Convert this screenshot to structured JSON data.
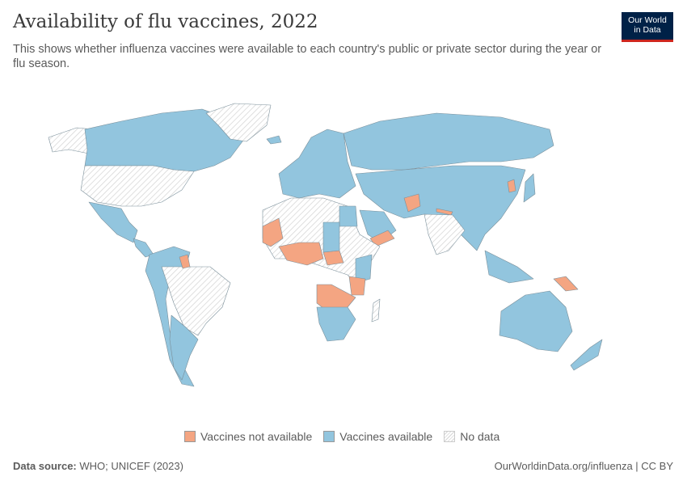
{
  "header": {
    "title": "Availability of flu vaccines, 2022",
    "subtitle": "This shows whether influenza vaccines were available to each country's public or private sector during the year or flu season.",
    "logo_line1": "Our World",
    "logo_line2": "in Data"
  },
  "legend": {
    "items": [
      {
        "label": "Vaccines not available",
        "color": "#f4a582"
      },
      {
        "label": "Vaccines available",
        "color": "#92c5de"
      },
      {
        "label": "No data",
        "color": "hatched"
      }
    ]
  },
  "colors": {
    "not_available": "#f4a582",
    "available": "#92c5de",
    "no_data_stroke": "#d9d9d9",
    "border": "#6b7f8a"
  },
  "footer": {
    "source_label": "Data source:",
    "source_value": "WHO; UNICEF (2023)",
    "link": "OurWorldinData.org/influenza | CC BY"
  }
}
